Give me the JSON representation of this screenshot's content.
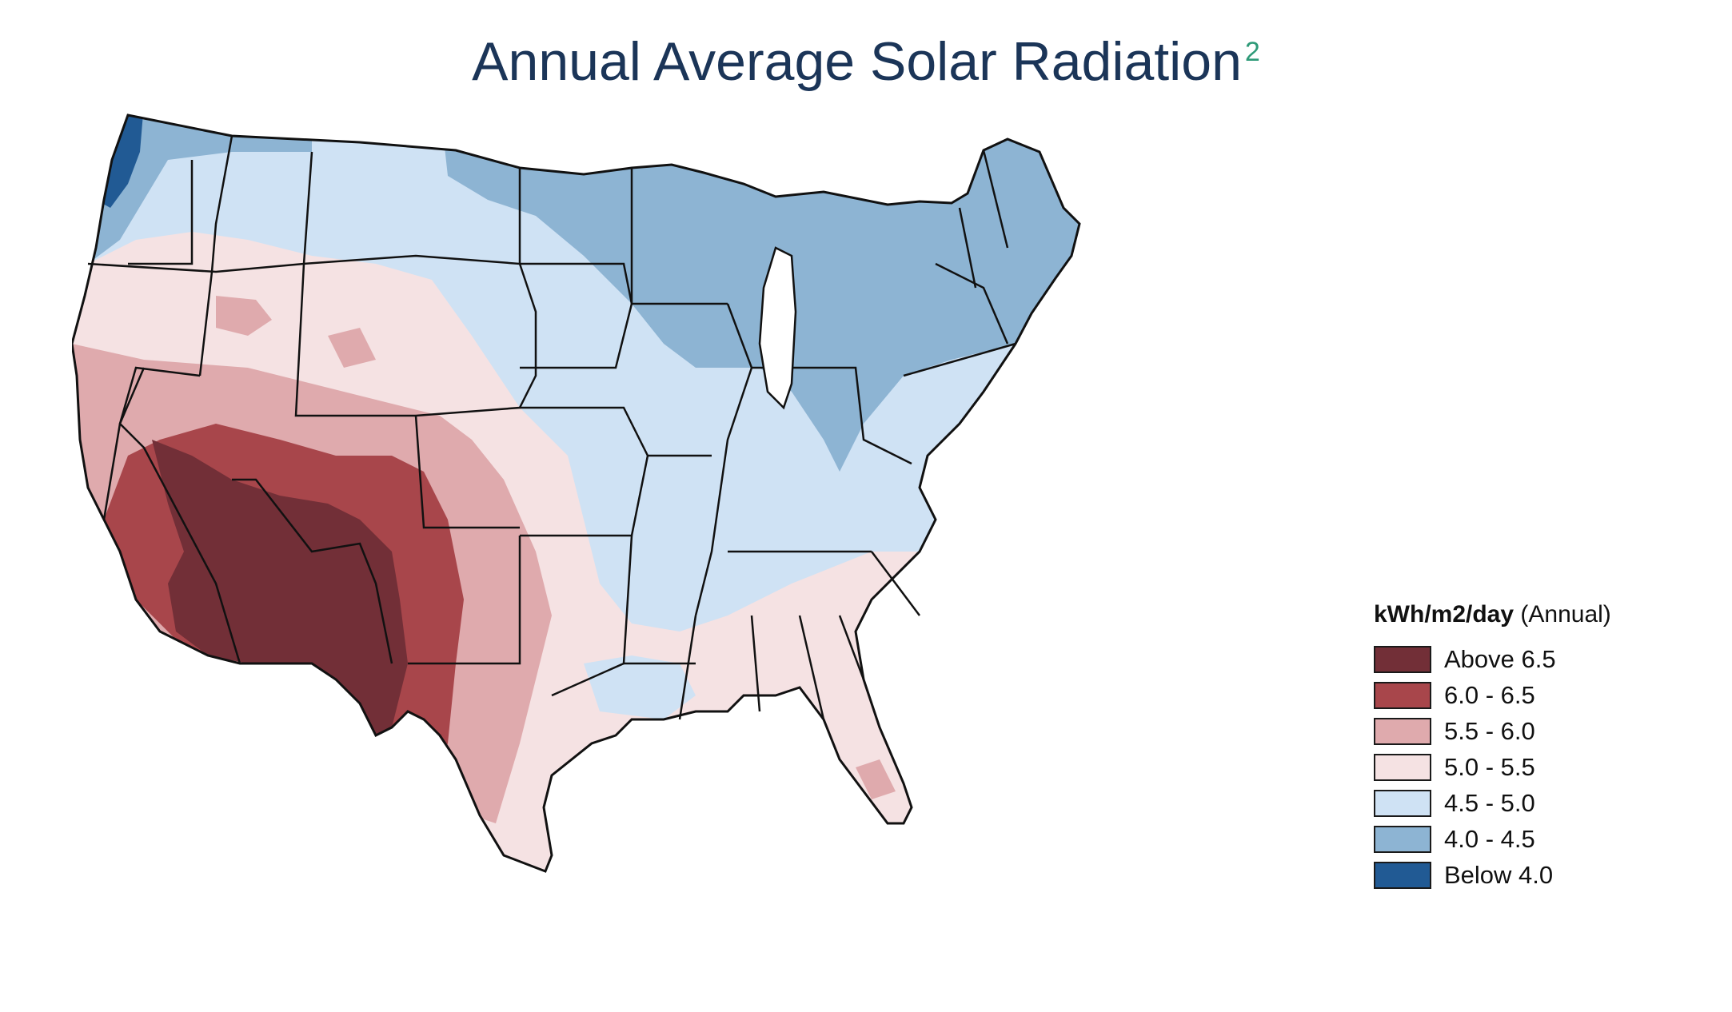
{
  "title": {
    "text": "Annual Average Solar Radiation",
    "superscript": "2"
  },
  "legend": {
    "title_bold": "kWh/m2/day",
    "title_rest": "(Annual)",
    "items": [
      {
        "label": "Above 6.5",
        "color": "#722f37"
      },
      {
        "label": "6.0 - 6.5",
        "color": "#a8464b"
      },
      {
        "label": "5.5 - 6.0",
        "color": "#dfaaad"
      },
      {
        "label": "5.0 - 5.5",
        "color": "#f5e2e3"
      },
      {
        "label": "4.5 - 5.0",
        "color": "#cfe2f4"
      },
      {
        "label": "4.0 - 4.5",
        "color": "#8db4d3"
      },
      {
        "label": "Below 4.0",
        "color": "#215a94"
      }
    ]
  },
  "map": {
    "region": "contiguous-united-states",
    "boundary_color": "#111111"
  }
}
